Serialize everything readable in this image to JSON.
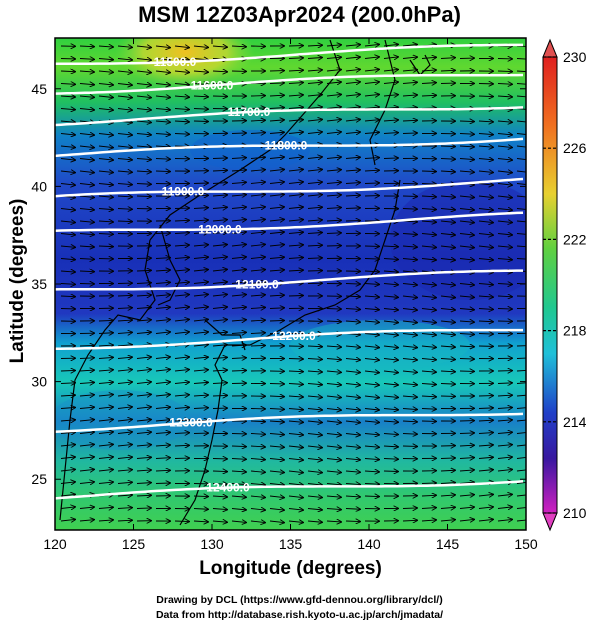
{
  "title": "MSM 12Z03Apr2024 (200.0hPa)",
  "axes": {
    "xlabel": "Longitude (degrees)",
    "ylabel": "Latitude  (degrees)",
    "x_ticks": [
      "120",
      "125",
      "130",
      "135",
      "140",
      "145",
      "150"
    ],
    "y_ticks": [
      "25",
      "30",
      "35",
      "40",
      "45"
    ],
    "xlim": [
      120,
      150
    ],
    "ylim": [
      22.4,
      47.6
    ]
  },
  "colorbar": {
    "ticks": [
      "230",
      "226",
      "222",
      "218",
      "214",
      "210"
    ],
    "range": [
      210,
      230
    ]
  },
  "contours": [
    {
      "label": "11500.0",
      "lat": 47.0
    },
    {
      "label": "11600.0",
      "lat": 45.6
    },
    {
      "label": "11700.0",
      "lat": 44.0
    },
    {
      "label": "11800.0",
      "lat": 42.3
    },
    {
      "label": "11900.0",
      "lat": 40.1
    },
    {
      "label": "12000.0",
      "lat": 38.3
    },
    {
      "label": "12100.0",
      "lat": 35.4
    },
    {
      "label": "12200.0",
      "lat": 32.5
    },
    {
      "label": "12300.0",
      "lat": 28.3
    },
    {
      "label": "12400.0",
      "lat": 24.8
    }
  ],
  "credits": {
    "line1": "Drawing by DCL (https://www.gfd-dennou.org/library/dcl/)",
    "line2": "Data from http://database.rish.kyoto-u.ac.jp/arch/jmadata/"
  },
  "colors": {
    "low": "#c020c0",
    "cold": "#2030c8",
    "mid": "#20c8a0",
    "warm": "#40d040",
    "high": "#e8c020",
    "hot": "#e02020"
  }
}
